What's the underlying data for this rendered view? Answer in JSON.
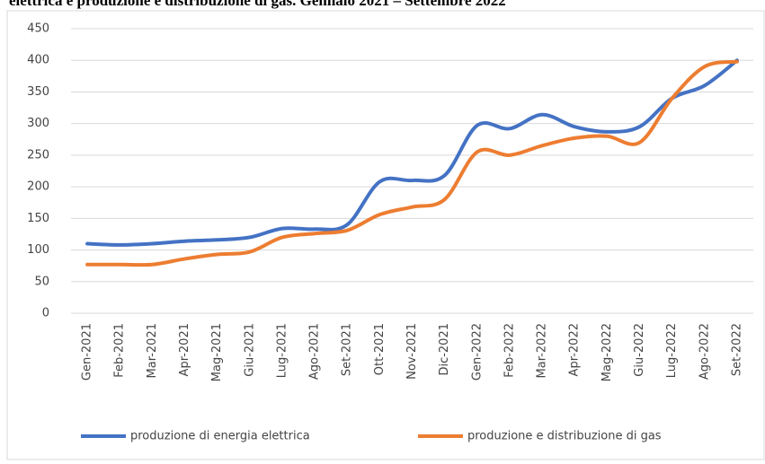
{
  "chart_data": {
    "type": "line",
    "title": "elettrica e produzione e distribuzione di gas. Gennaio 2021 – Settembre 2022",
    "categories": [
      "Gen-2021",
      "Feb-2021",
      "Mar-2021",
      "Apr-2021",
      "Mag-2021",
      "Giu-2021",
      "Lug-2021",
      "Ago-2021",
      "Set-2021",
      "Ott-2021",
      "Nov-2021",
      "Dic-2021",
      "Gen-2022",
      "Feb-2022",
      "Mar-2022",
      "Apr-2022",
      "Mag-2022",
      "Giu-2022",
      "Lug-2022",
      "Ago-2022",
      "Set-2022"
    ],
    "series": [
      {
        "name": "produzione di energia elettrica",
        "color": "#4472c4",
        "values": [
          110,
          108,
          110,
          114,
          116,
          120,
          134,
          133,
          140,
          208,
          210,
          218,
          297,
          292,
          314,
          295,
          287,
          295,
          340,
          360,
          400
        ]
      },
      {
        "name": "produzione e distribuzione di gas",
        "color": "#ed7d31",
        "values": [
          77,
          77,
          77,
          86,
          93,
          97,
          120,
          126,
          131,
          156,
          168,
          180,
          255,
          250,
          265,
          277,
          280,
          270,
          340,
          390,
          398
        ]
      }
    ],
    "ylim": [
      0,
      450
    ],
    "yticks": [
      0,
      50,
      100,
      150,
      200,
      250,
      300,
      350,
      400,
      450
    ],
    "grid": true,
    "legend": "bottom"
  }
}
